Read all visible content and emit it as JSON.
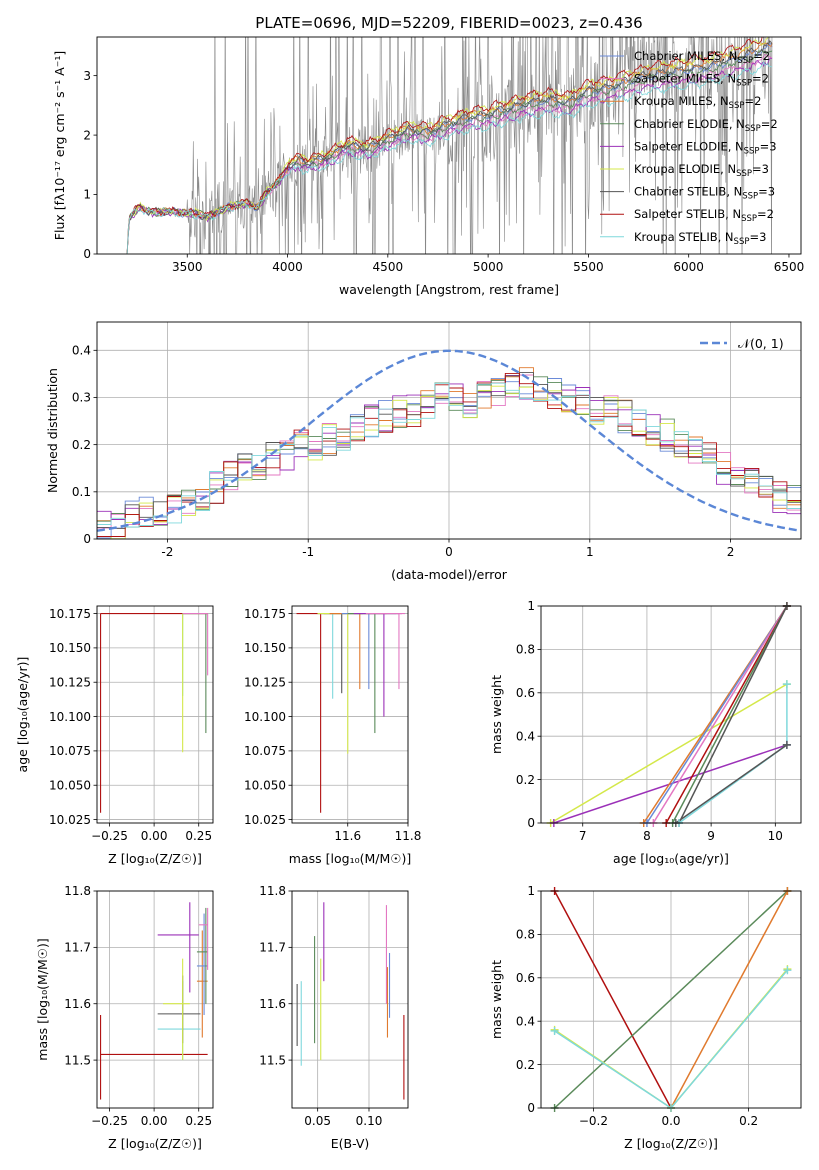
{
  "title": "PLATE=0696, MJD=52209, FIBERID=0023, z=0.436",
  "series": [
    {
      "name": "Chabrier MILES, N$_{SSP}$=2",
      "legend_main": "Chabrier MILES, N",
      "legend_sub": "SSP",
      "legend_tail": "=2",
      "color": "#6a8ad8"
    },
    {
      "name": "Salpeter MILES, N$_{SSP}$=2",
      "legend_main": "Salpeter MILES, N",
      "legend_sub": "SSP",
      "legend_tail": "=2",
      "color": "#e377c2"
    },
    {
      "name": "Kroupa MILES, N$_{SSP}$=2",
      "legend_main": "Kroupa MILES, N",
      "legend_sub": "SSP",
      "legend_tail": "=2",
      "color": "#e07a2e"
    },
    {
      "name": "Chabrier ELODIE, N$_{SSP}$=2",
      "legend_main": "Chabrier ELODIE, N",
      "legend_sub": "SSP",
      "legend_tail": "=2",
      "color": "#5a8a5a"
    },
    {
      "name": "Salpeter ELODIE, N$_{SSP}$=3",
      "legend_main": "Salpeter ELODIE, N",
      "legend_sub": "SSP",
      "legend_tail": "=3",
      "color": "#9b30b8"
    },
    {
      "name": "Kroupa ELODIE, N$_{SSP}$=3",
      "legend_main": "Kroupa ELODIE, N",
      "legend_sub": "SSP",
      "legend_tail": "=3",
      "color": "#d4e84a"
    },
    {
      "name": "Chabrier STELIB, N$_{SSP}$=3",
      "legend_main": "Chabrier STELIB, N",
      "legend_sub": "SSP",
      "legend_tail": "=3",
      "color": "#555555"
    },
    {
      "name": "Salpeter STELIB, N$_{SSP}$=2",
      "legend_main": "Salpeter STELIB, N",
      "legend_sub": "SSP",
      "legend_tail": "=2",
      "color": "#b01010"
    },
    {
      "name": "Kroupa STELIB, N$_{SSP}$=3",
      "legend_main": "Kroupa STELIB, N",
      "legend_sub": "SSP",
      "legend_tail": "=3",
      "color": "#7fd8dc"
    }
  ],
  "chart_data": [
    {
      "id": "spectrum",
      "type": "line",
      "xlabel": "wavelength [Angstrom, rest frame]",
      "ylabel": "Flux [f$_\\lambda$10$^{-17}$ erg cm$^{-2}$ s$^{-1}$ A$^{-1}$]",
      "ylabel_display": "Flux [fλ10⁻¹⁷ erg cm⁻² s⁻¹ A⁻¹]",
      "xlim": [
        3050,
        6560
      ],
      "ylim": [
        0,
        3.65
      ],
      "xticks": [
        3500,
        4000,
        4500,
        5000,
        5500,
        6000,
        6500
      ],
      "yticks": [
        0,
        1,
        2,
        3
      ],
      "data_color": "#888888",
      "data_x_range": [
        3200,
        6420
      ],
      "model_anchor_points": {
        "x": [
          3200,
          3210,
          3250,
          3270,
          3300,
          3350,
          3400,
          3450,
          3500,
          3550,
          3600,
          3700,
          3800,
          3850,
          3900,
          3950,
          4000,
          4050,
          4100,
          4200,
          4300,
          4400,
          4500,
          4600,
          4700,
          4800,
          4900,
          5000,
          5100,
          5200,
          5300,
          5400,
          5500,
          5600,
          5700,
          5800,
          5900,
          6000,
          6100,
          6200,
          6300,
          6420
        ],
        "y": [
          0.0,
          0.6,
          0.75,
          0.78,
          0.72,
          0.7,
          0.72,
          0.7,
          0.68,
          0.68,
          0.62,
          0.78,
          0.86,
          0.78,
          1.05,
          1.2,
          1.45,
          1.55,
          1.5,
          1.6,
          1.8,
          1.75,
          1.9,
          2.05,
          2.0,
          2.15,
          2.25,
          2.3,
          2.4,
          2.5,
          2.55,
          2.5,
          2.7,
          2.75,
          2.85,
          2.95,
          3.0,
          3.05,
          3.1,
          3.2,
          3.3,
          3.45
        ]
      },
      "legend_position": "top-right"
    },
    {
      "id": "residual_histogram",
      "type": "line",
      "xlabel": "(data-model)/error",
      "ylabel": "Normed distribution",
      "xlim": [
        -2.5,
        2.5
      ],
      "ylim": [
        0,
        0.46
      ],
      "xticks": [
        -2,
        -1,
        0,
        1,
        2
      ],
      "yticks": [
        0.0,
        0.1,
        0.2,
        0.3,
        0.4
      ],
      "reference_curve": {
        "name": "$\\mathcal{N}(0,1)$",
        "label_display": "𝒩(0, 1)",
        "color": "#5b87d6",
        "mean": 0,
        "sigma": 1
      },
      "bin_width": 0.1,
      "bin_centers": [
        -2.45,
        -2.35,
        -2.25,
        -2.15,
        -2.05,
        -1.95,
        -1.85,
        -1.75,
        -1.65,
        -1.55,
        -1.45,
        -1.35,
        -1.25,
        -1.15,
        -1.05,
        -0.95,
        -0.85,
        -0.75,
        -0.65,
        -0.55,
        -0.45,
        -0.35,
        -0.25,
        -0.15,
        -0.05,
        0.05,
        0.15,
        0.25,
        0.35,
        0.45,
        0.55,
        0.65,
        0.75,
        0.85,
        0.95,
        1.05,
        1.15,
        1.25,
        1.35,
        1.45,
        1.55,
        1.65,
        1.75,
        1.85,
        1.95,
        2.05,
        2.15,
        2.25,
        2.35,
        2.45
      ],
      "envelope": [
        0.025,
        0.035,
        0.05,
        0.06,
        0.055,
        0.065,
        0.085,
        0.095,
        0.11,
        0.13,
        0.15,
        0.16,
        0.17,
        0.18,
        0.2,
        0.2,
        0.21,
        0.22,
        0.23,
        0.25,
        0.26,
        0.27,
        0.27,
        0.28,
        0.3,
        0.3,
        0.29,
        0.3,
        0.31,
        0.32,
        0.33,
        0.32,
        0.31,
        0.3,
        0.29,
        0.27,
        0.27,
        0.26,
        0.25,
        0.23,
        0.22,
        0.2,
        0.19,
        0.17,
        0.15,
        0.14,
        0.12,
        0.1,
        0.09,
        0.08
      ],
      "legend_position": "top-right"
    },
    {
      "id": "age_vs_Z",
      "type": "scatter",
      "xlabel": "Z [log$_{10}$(Z/Z$_\\odot$)]",
      "xlabel_display": "Z [log₁₀(Z/Z☉)]",
      "ylabel": "age  [log$_{10}$(age/yr)]",
      "ylabel_display": "age  [log₁₀(age/yr)]",
      "xlim": [
        -0.32,
        0.33
      ],
      "ylim": [
        10.0225,
        10.1805
      ],
      "xticks": [
        -0.25,
        0.0,
        0.25
      ],
      "xtick_labels": [
        "−0.25",
        "0.00",
        "0.25"
      ],
      "yticks": [
        10.025,
        10.05,
        10.075,
        10.1,
        10.125,
        10.15,
        10.175
      ],
      "yticks_labels": [
        "10.025",
        "10.050",
        "10.075",
        "10.100",
        "10.125",
        "10.150",
        "10.175"
      ],
      "points": [
        {
          "s": 7,
          "x": -0.3,
          "y": 10.175,
          "xlo": -0.3,
          "xhi": 0.3,
          "ylo": 10.03,
          "yhi": 10.175
        },
        {
          "s": 8,
          "x": 0.16,
          "y": 10.175,
          "xlo": 0.16,
          "xhi": 0.3,
          "ylo": 10.115,
          "yhi": 10.175
        },
        {
          "s": 5,
          "x": 0.16,
          "y": 10.175,
          "xlo": 0.16,
          "xhi": 0.3,
          "ylo": 10.074,
          "yhi": 10.175
        },
        {
          "s": 3,
          "x": 0.29,
          "y": 10.175,
          "xlo": 0.16,
          "xhi": 0.3,
          "ylo": 10.088,
          "yhi": 10.175
        },
        {
          "s": 1,
          "x": 0.3,
          "y": 10.175,
          "xlo": 0.16,
          "xhi": 0.3,
          "ylo": 10.13,
          "yhi": 10.175
        }
      ]
    },
    {
      "id": "age_vs_mass",
      "type": "scatter",
      "xlabel": "mass [log$_{10}$(M/M$_\\odot$)]",
      "xlabel_display": "mass [log₁₀(M/M☉)]",
      "ylabel": "",
      "xlim": [
        11.415,
        11.8
      ],
      "ylim": [
        10.0225,
        10.1805
      ],
      "xticks": [
        11.6,
        11.8
      ],
      "yticks": [
        10.025,
        10.05,
        10.075,
        10.1,
        10.125,
        10.15,
        10.175
      ],
      "yticks_labels": [
        "10.025",
        "10.050",
        "10.075",
        "10.100",
        "10.125",
        "10.150",
        "10.175"
      ],
      "points": [
        {
          "s": 7,
          "x": 11.51,
          "y": 10.175,
          "xlo": 11.43,
          "xhi": 11.58,
          "ylo": 10.03,
          "yhi": 10.175
        },
        {
          "s": 8,
          "x": 11.55,
          "y": 10.175,
          "xlo": 11.5,
          "xhi": 11.64,
          "ylo": 10.113,
          "yhi": 10.175
        },
        {
          "s": 6,
          "x": 11.58,
          "y": 10.175,
          "xlo": 11.52,
          "xhi": 11.65,
          "ylo": 10.117,
          "yhi": 10.175
        },
        {
          "s": 5,
          "x": 11.6,
          "y": 10.175,
          "xlo": 11.5,
          "xhi": 11.68,
          "ylo": 10.073,
          "yhi": 10.175
        },
        {
          "s": 2,
          "x": 11.64,
          "y": 10.175,
          "xlo": 11.54,
          "xhi": 11.73,
          "ylo": 10.12,
          "yhi": 10.175
        },
        {
          "s": 0,
          "x": 11.67,
          "y": 10.175,
          "xlo": 11.58,
          "xhi": 11.76,
          "ylo": 10.12,
          "yhi": 10.175
        },
        {
          "s": 3,
          "x": 11.69,
          "y": 10.175,
          "xlo": 11.6,
          "xhi": 11.77,
          "ylo": 10.088,
          "yhi": 10.175
        },
        {
          "s": 4,
          "x": 11.72,
          "y": 10.175,
          "xlo": 11.62,
          "xhi": 11.78,
          "ylo": 10.1,
          "yhi": 10.175
        },
        {
          "s": 1,
          "x": 11.77,
          "y": 10.175,
          "xlo": 11.66,
          "xhi": 11.79,
          "ylo": 10.12,
          "yhi": 10.175
        }
      ]
    },
    {
      "id": "weight_vs_age",
      "type": "line",
      "xlabel": "age  [log$_{10}$(age/yr)]",
      "xlabel_display": "age  [log₁₀(age/yr)]",
      "ylabel": "mass weight",
      "xlim": [
        6.35,
        10.4
      ],
      "ylim": [
        0,
        1
      ],
      "xticks": [
        7,
        8,
        9,
        10
      ],
      "yticks": [
        0.0,
        0.2,
        0.4,
        0.6,
        0.8,
        1.0
      ],
      "lines": [
        {
          "s": 5,
          "x": [
            6.5,
            10.18
          ],
          "y": [
            0.0,
            0.64
          ]
        },
        {
          "s": 4,
          "x": [
            6.55,
            10.18
          ],
          "y": [
            0.0,
            0.36
          ]
        },
        {
          "s": 2,
          "x": [
            7.95,
            10.18
          ],
          "y": [
            0.0,
            1.0
          ]
        },
        {
          "s": 0,
          "x": [
            8.0,
            10.18
          ],
          "y": [
            0.0,
            1.0
          ]
        },
        {
          "s": 1,
          "x": [
            8.1,
            10.18
          ],
          "y": [
            0.0,
            1.0
          ]
        },
        {
          "s": 7,
          "x": [
            8.3,
            10.18
          ],
          "y": [
            0.0,
            1.0
          ]
        },
        {
          "s": 3,
          "x": [
            8.4,
            10.18
          ],
          "y": [
            0.0,
            1.0
          ]
        },
        {
          "s": 6,
          "x": [
            8.5,
            10.18
          ],
          "y": [
            0.0,
            1.0
          ]
        },
        {
          "s": 8,
          "x": [
            8.5,
            10.18,
            10.18
          ],
          "y": [
            0.0,
            0.36,
            0.64
          ]
        },
        {
          "s": 6,
          "x": [
            8.45,
            10.18
          ],
          "y": [
            0.0,
            0.36
          ]
        }
      ]
    },
    {
      "id": "mass_vs_Z",
      "type": "scatter",
      "xlabel": "Z [log$_{10}$(Z/Z$_\\odot$)]",
      "xlabel_display": "Z [log₁₀(Z/Z☉)]",
      "ylabel": "mass [log$_{10}$(M/M$_\\odot$)]",
      "ylabel_display": "mass [log₁₀(M/M☉)]",
      "xlim": [
        -0.32,
        0.33
      ],
      "ylim": [
        11.415,
        11.8
      ],
      "xticks": [
        -0.25,
        0.0,
        0.25
      ],
      "xtick_labels": [
        "−0.25",
        "0.00",
        "0.25"
      ],
      "yticks": [
        11.5,
        11.6,
        11.7,
        11.8
      ],
      "points": [
        {
          "s": 7,
          "x": -0.3,
          "y": 11.51,
          "xlo": -0.3,
          "xhi": 0.3,
          "ylo": 11.43,
          "yhi": 11.58
        },
        {
          "s": 8,
          "x": 0.16,
          "y": 11.555,
          "xlo": 0.02,
          "xhi": 0.26,
          "ylo": 11.5,
          "yhi": 11.64
        },
        {
          "s": 6,
          "x": 0.16,
          "y": 11.582,
          "xlo": 0.02,
          "xhi": 0.26,
          "ylo": 11.53,
          "yhi": 11.65
        },
        {
          "s": 5,
          "x": 0.16,
          "y": 11.6,
          "xlo": 0.05,
          "xhi": 0.2,
          "ylo": 11.5,
          "yhi": 11.68
        },
        {
          "s": 2,
          "x": 0.27,
          "y": 11.64,
          "xlo": 0.24,
          "xhi": 0.3,
          "ylo": 11.54,
          "yhi": 11.73
        },
        {
          "s": 0,
          "x": 0.28,
          "y": 11.667,
          "xlo": 0.24,
          "xhi": 0.3,
          "ylo": 11.58,
          "yhi": 11.76
        },
        {
          "s": 3,
          "x": 0.29,
          "y": 11.692,
          "xlo": 0.24,
          "xhi": 0.3,
          "ylo": 11.6,
          "yhi": 11.77
        },
        {
          "s": 4,
          "x": 0.2,
          "y": 11.722,
          "xlo": 0.02,
          "xhi": 0.25,
          "ylo": 11.62,
          "yhi": 11.78
        },
        {
          "s": 1,
          "x": 0.3,
          "y": 11.74,
          "xlo": 0.25,
          "xhi": 0.3,
          "ylo": 11.66,
          "yhi": 11.77
        }
      ]
    },
    {
      "id": "mass_vs_EBV",
      "type": "scatter",
      "xlabel": "E(B-V)",
      "ylabel": "",
      "xlim": [
        0.025,
        0.138
      ],
      "ylim": [
        11.415,
        11.8
      ],
      "xticks": [
        0.05,
        0.1
      ],
      "xtick_labels": [
        "0.05",
        "0.10"
      ],
      "yticks": [
        11.5,
        11.6,
        11.7,
        11.8
      ],
      "points": [
        {
          "s": 6,
          "x": 0.03,
          "y": 11.58,
          "ylo": 11.525,
          "yhi": 11.635
        },
        {
          "s": 8,
          "x": 0.034,
          "y": 11.565,
          "ylo": 11.49,
          "yhi": 11.64
        },
        {
          "s": 3,
          "x": 0.047,
          "y": 11.63,
          "ylo": 11.53,
          "yhi": 11.72
        },
        {
          "s": 5,
          "x": 0.053,
          "y": 11.58,
          "ylo": 11.5,
          "yhi": 11.68
        },
        {
          "s": 4,
          "x": 0.056,
          "y": 11.72,
          "ylo": 11.64,
          "yhi": 11.78
        },
        {
          "s": 1,
          "x": 0.117,
          "y": 11.69,
          "ylo": 11.6,
          "yhi": 11.775
        },
        {
          "s": 2,
          "x": 0.118,
          "y": 11.6,
          "ylo": 11.54,
          "yhi": 11.665
        },
        {
          "s": 0,
          "x": 0.12,
          "y": 11.635,
          "ylo": 11.575,
          "yhi": 11.69
        },
        {
          "s": 7,
          "x": 0.134,
          "y": 11.5,
          "ylo": 11.43,
          "yhi": 11.58
        }
      ]
    },
    {
      "id": "weight_vs_Z",
      "type": "line",
      "xlabel": "Z [log$_{10}$(Z/Z$_\\odot$)]",
      "xlabel_display": "Z [log₁₀(Z/Z☉)]",
      "ylabel": "mass weight",
      "xlim": [
        -0.335,
        0.335
      ],
      "ylim": [
        0,
        1
      ],
      "xticks": [
        -0.2,
        0.0,
        0.2
      ],
      "xtick_labels": [
        "−0.2",
        "0.0",
        "0.2"
      ],
      "yticks": [
        0.0,
        0.2,
        0.4,
        0.6,
        0.8,
        1.0
      ],
      "lines": [
        {
          "s": 7,
          "x": [
            -0.3,
            0.0
          ],
          "y": [
            1.0,
            0.0
          ]
        },
        {
          "s": 3,
          "x": [
            -0.3,
            0.3
          ],
          "y": [
            0.0,
            1.0
          ]
        },
        {
          "s": 2,
          "x": [
            0.0,
            0.3
          ],
          "y": [
            0.0,
            1.0
          ]
        },
        {
          "s": 5,
          "x": [
            -0.3,
            0.0,
            0.3
          ],
          "y": [
            0.36,
            0.0,
            0.64
          ]
        },
        {
          "s": 8,
          "x": [
            -0.3,
            0.0,
            0.3
          ],
          "y": [
            0.355,
            0.0,
            0.635
          ]
        }
      ]
    }
  ]
}
